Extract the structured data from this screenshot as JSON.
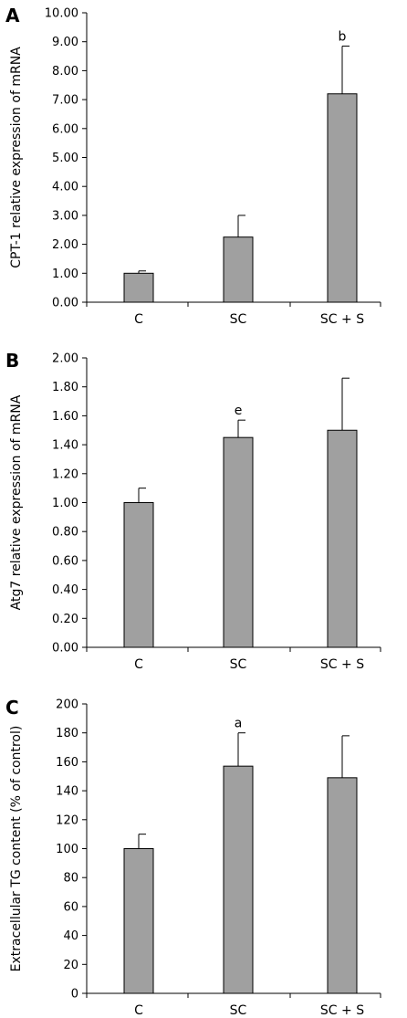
{
  "chart_data": [
    {
      "type": "bar",
      "panel": "A",
      "categories": [
        "C",
        "SC",
        "SC + S"
      ],
      "values": [
        1.0,
        2.25,
        7.2
      ],
      "errors": [
        0.08,
        0.75,
        1.65
      ],
      "annotations": [
        "",
        "",
        "b"
      ],
      "ylabel": "CPT-1 relative expression of mRNA",
      "ylim": [
        0,
        10
      ],
      "yticks": [
        "0.00",
        "1.00",
        "2.00",
        "3.00",
        "4.00",
        "5.00",
        "6.00",
        "7.00",
        "8.00",
        "9.00",
        "10.00"
      ],
      "bar_color": "#a0a0a0"
    },
    {
      "type": "bar",
      "panel": "B",
      "categories": [
        "C",
        "SC",
        "SC + S"
      ],
      "values": [
        1.0,
        1.45,
        1.5
      ],
      "errors": [
        0.1,
        0.12,
        0.36
      ],
      "annotations": [
        "",
        "e",
        ""
      ],
      "ylabel": "Atg7 relative expression of mRNA",
      "ylim": [
        0,
        2
      ],
      "yticks": [
        "0.00",
        "0.20",
        "0.40",
        "0.60",
        "0.80",
        "1.00",
        "1.20",
        "1.40",
        "1.60",
        "1.80",
        "2.00"
      ],
      "bar_color": "#a0a0a0"
    },
    {
      "type": "bar",
      "panel": "C",
      "categories": [
        "C",
        "SC",
        "SC + S"
      ],
      "values": [
        100,
        157,
        149
      ],
      "errors": [
        10,
        23,
        29
      ],
      "annotations": [
        "",
        "a",
        ""
      ],
      "ylabel": "Extracellular TG content (% of control)",
      "ylim": [
        0,
        200
      ],
      "yticks": [
        "0",
        "20",
        "40",
        "60",
        "80",
        "100",
        "120",
        "140",
        "160",
        "180",
        "200"
      ],
      "bar_color": "#a0a0a0"
    }
  ]
}
